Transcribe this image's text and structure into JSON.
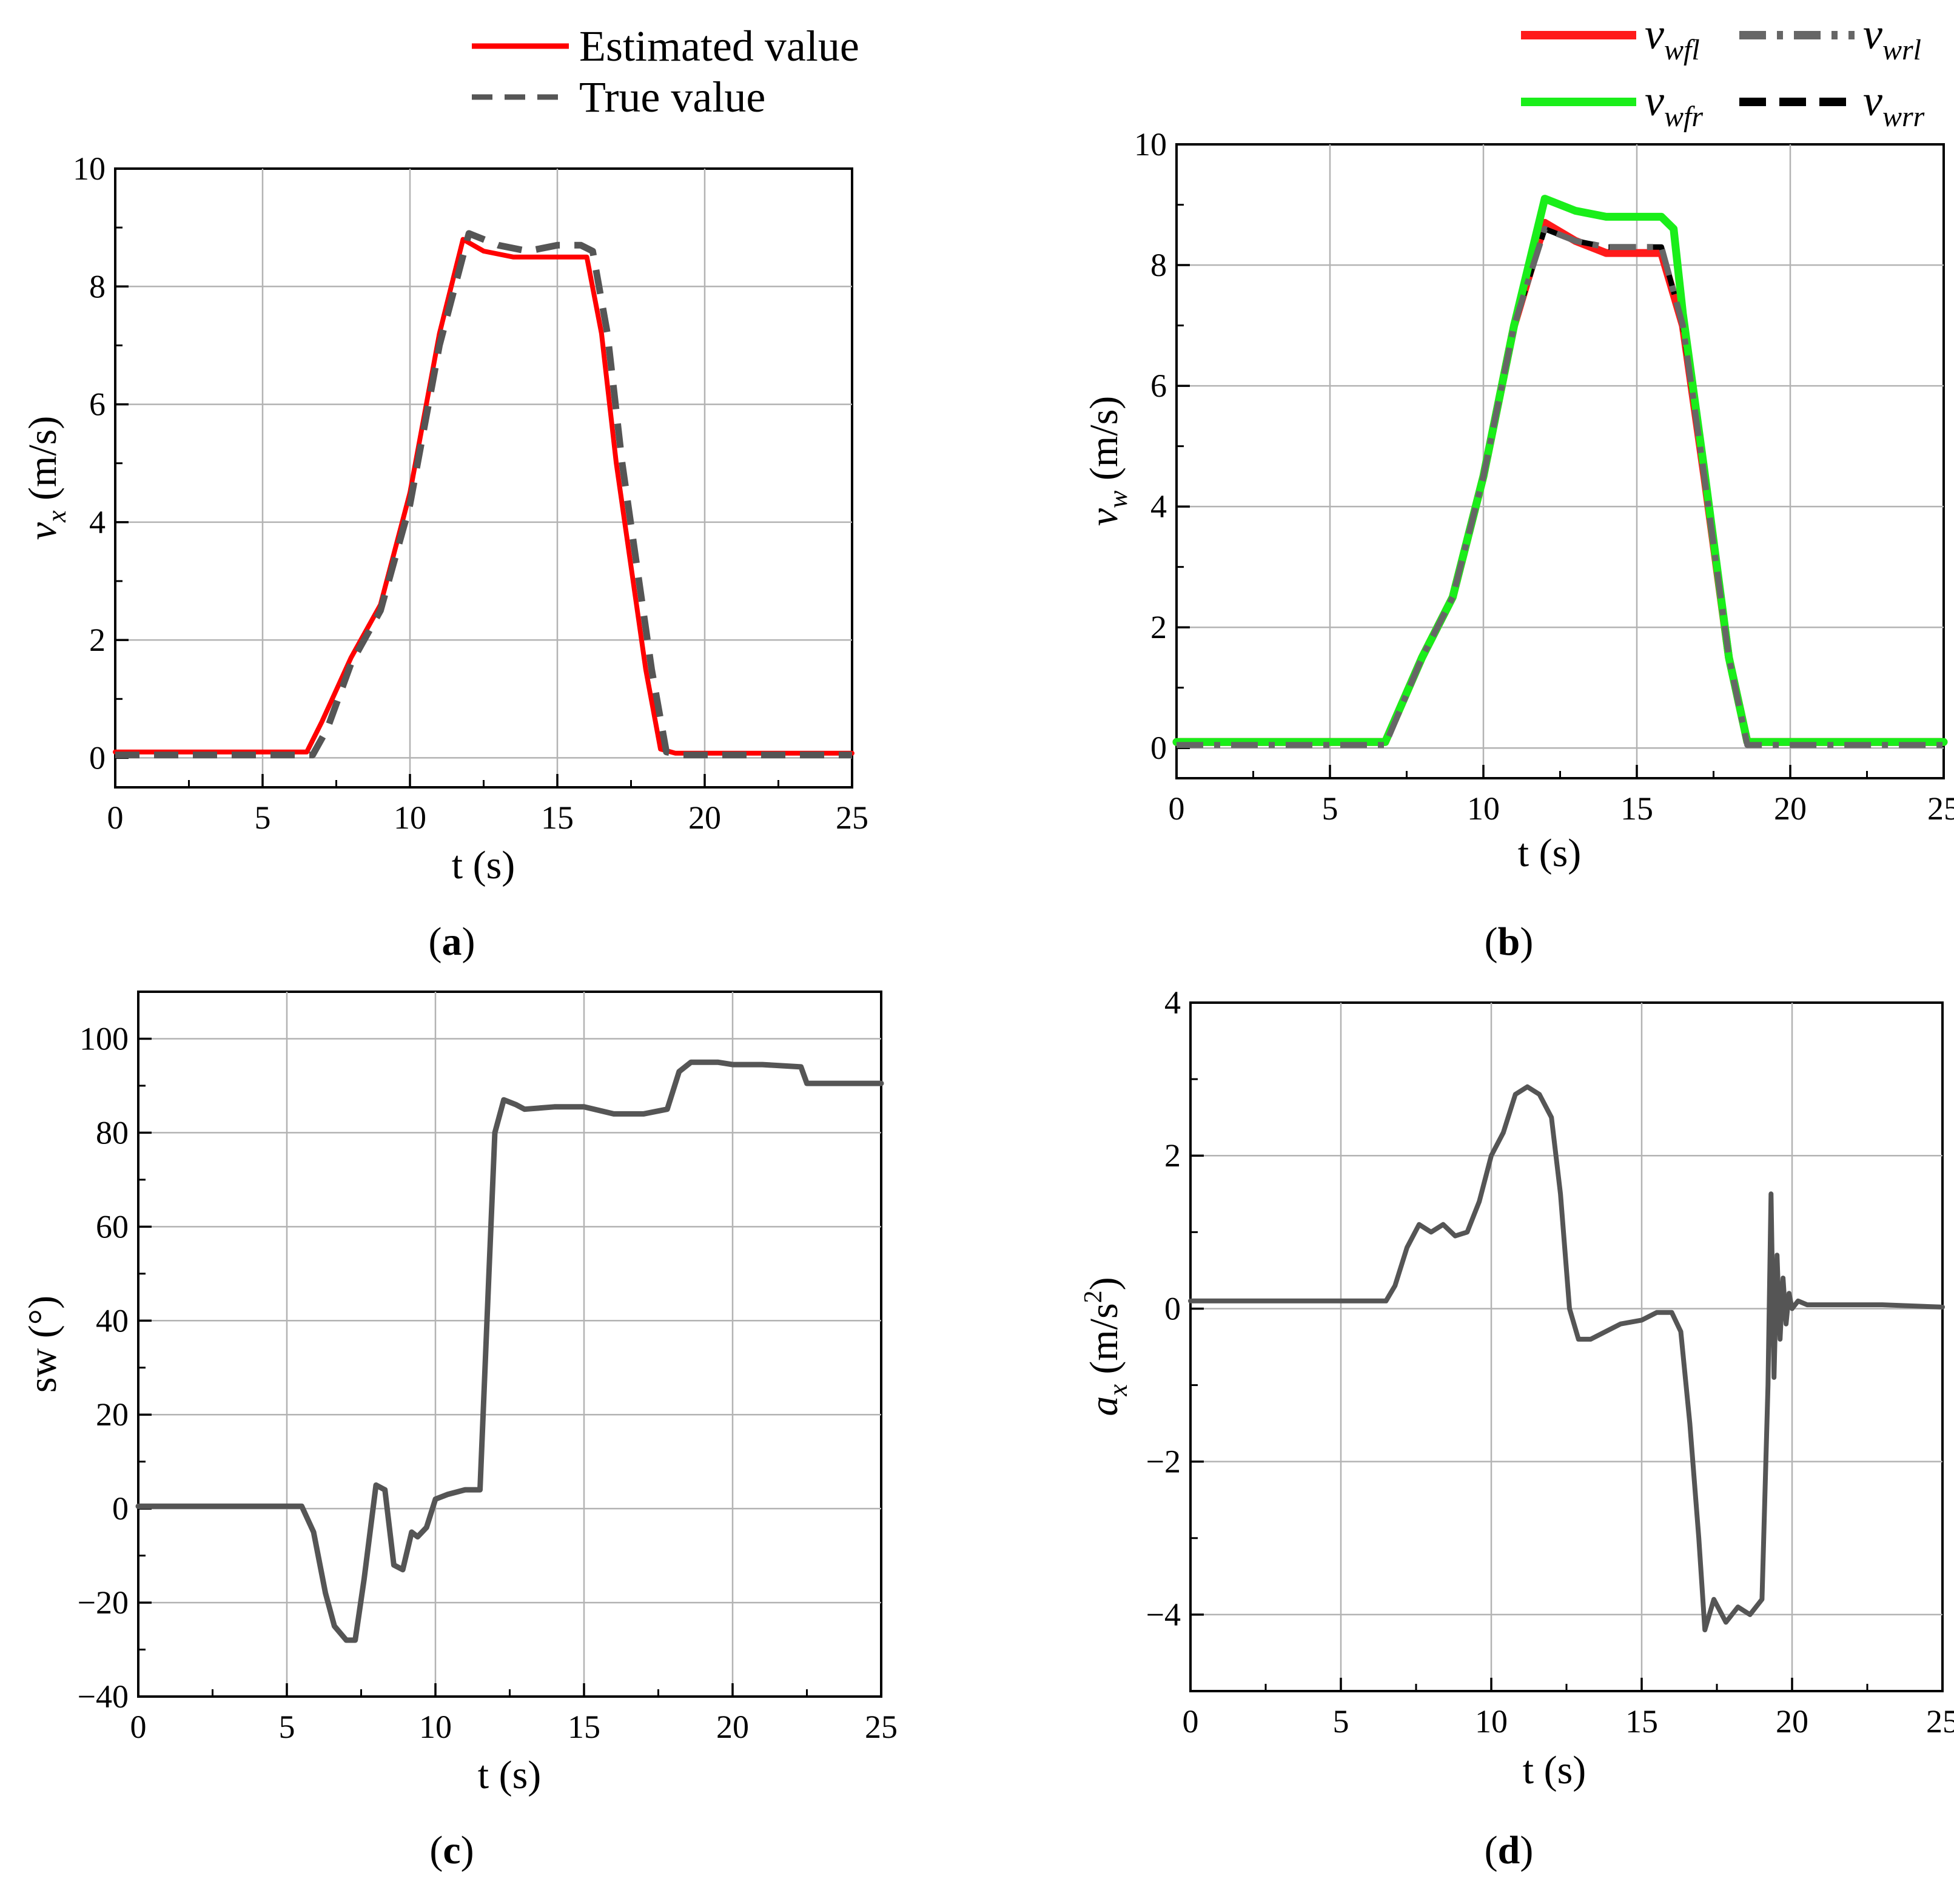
{
  "chart_data": [
    {
      "id": "a",
      "type": "line",
      "caption": "a",
      "xlabel": "t (s)",
      "ylabel": "v",
      "ylabel_sub": "x",
      "ylabel_unit": " (m/s)",
      "xlim": [
        0,
        25
      ],
      "ylim": [
        -0.5,
        10
      ],
      "xticks": [
        0,
        5,
        10,
        15,
        20,
        25
      ],
      "yticks": [
        0,
        2,
        4,
        6,
        8,
        10
      ],
      "grid": true,
      "legend": {
        "placement": "top-center, above plot",
        "entries": [
          "Estimated value",
          "True value"
        ]
      },
      "series": [
        {
          "name": "Estimated value",
          "style": "solid",
          "color": "#ff0000",
          "x": [
            0,
            6.5,
            7,
            8,
            9,
            10,
            11,
            11.8,
            12.5,
            13.5,
            14.5,
            15.5,
            16,
            16.5,
            17,
            18,
            18.5,
            19,
            25
          ],
          "y": [
            0.1,
            0.1,
            0.6,
            1.7,
            2.6,
            4.5,
            7.2,
            8.8,
            8.6,
            8.5,
            8.5,
            8.5,
            8.5,
            7.2,
            5.0,
            1.5,
            0.15,
            0.08,
            0.08
          ]
        },
        {
          "name": "True value",
          "style": "dashed",
          "color": "#555555",
          "x": [
            0,
            6.7,
            7.2,
            8,
            9,
            10,
            11,
            12,
            13,
            14,
            15,
            15.8,
            16.2,
            16.7,
            17.2,
            18.2,
            18.7,
            19.2,
            25
          ],
          "y": [
            0.05,
            0.05,
            0.5,
            1.6,
            2.5,
            4.3,
            7.0,
            8.9,
            8.7,
            8.6,
            8.7,
            8.7,
            8.6,
            7.2,
            5.0,
            1.5,
            0.1,
            0.05,
            0.05
          ]
        }
      ]
    },
    {
      "id": "b",
      "type": "line",
      "caption": "b",
      "xlabel": "t (s)",
      "ylabel": "v",
      "ylabel_sub": "w",
      "ylabel_unit": " (m/s)",
      "xlim": [
        0,
        25
      ],
      "ylim": [
        -0.5,
        10
      ],
      "xticks": [
        0,
        5,
        10,
        15,
        20,
        25
      ],
      "yticks": [
        0,
        2,
        4,
        6,
        8,
        10
      ],
      "grid": true,
      "legend": {
        "placement": "top-right, above plot",
        "entries": [
          "v_wfl",
          "v_wrl",
          "v_wfr",
          "v_wrr"
        ]
      },
      "series": [
        {
          "name": "v",
          "sub": "wfl",
          "style": "solid",
          "color": "#ff1a1a",
          "x": [
            0,
            6.8,
            8,
            9,
            10,
            11,
            12,
            13,
            14,
            15,
            15.8,
            16.5,
            17.2,
            18,
            18.6,
            25
          ],
          "y": [
            0.1,
            0.1,
            1.5,
            2.5,
            4.5,
            7.0,
            8.7,
            8.4,
            8.2,
            8.2,
            8.2,
            7.0,
            4.5,
            1.5,
            0.1,
            0.1
          ]
        },
        {
          "name": "v",
          "sub": "wrr",
          "style": "dashed",
          "color": "#000000",
          "x": [
            0,
            6.8,
            8,
            9,
            10,
            11,
            12,
            13,
            14,
            15,
            15.8,
            16.5,
            17.2,
            18,
            18.6,
            25
          ],
          "y": [
            0.1,
            0.1,
            1.5,
            2.5,
            4.5,
            7.0,
            8.6,
            8.4,
            8.3,
            8.3,
            8.3,
            7.0,
            4.5,
            1.5,
            0.1,
            0.1
          ]
        },
        {
          "name": "v",
          "sub": "wfr",
          "style": "solid",
          "color": "#1aee1a",
          "x": [
            0,
            6.8,
            8,
            9,
            10,
            11,
            12,
            13,
            14,
            15,
            15.8,
            16.2,
            16.5,
            17.2,
            18,
            18.6,
            25
          ],
          "y": [
            0.1,
            0.1,
            1.5,
            2.5,
            4.5,
            7.0,
            9.1,
            8.9,
            8.8,
            8.8,
            8.8,
            8.6,
            7.2,
            4.6,
            1.5,
            0.1,
            0.1
          ]
        },
        {
          "name": "v",
          "sub": "wrl",
          "style": "dashdot",
          "color": "#666666",
          "x": [
            0,
            6.8,
            8,
            9,
            10,
            11,
            12,
            13,
            14,
            15,
            15.8,
            16.5,
            17.2,
            18,
            18.6,
            25
          ],
          "y": [
            0.05,
            0.05,
            1.5,
            2.5,
            4.5,
            7.0,
            8.6,
            8.4,
            8.3,
            8.3,
            8.3,
            7.0,
            4.5,
            1.5,
            0.05,
            0.05
          ]
        }
      ]
    },
    {
      "id": "c",
      "type": "line",
      "caption": "c",
      "xlabel": "t (s)",
      "ylabel": "sw (°)",
      "xlim": [
        0,
        25
      ],
      "ylim": [
        -40,
        110
      ],
      "xticks": [
        0,
        5,
        10,
        15,
        20,
        25
      ],
      "yticks": [
        -40,
        -20,
        0,
        20,
        40,
        60,
        80,
        100
      ],
      "grid": true,
      "series": [
        {
          "name": "sw",
          "style": "solid",
          "color": "#555555",
          "x": [
            0,
            5.5,
            5.9,
            6.3,
            6.6,
            7.0,
            7.3,
            7.6,
            8.0,
            8.3,
            8.6,
            8.9,
            9.2,
            9.4,
            9.7,
            10.0,
            10.4,
            11.0,
            11.5,
            11.8,
            12.0,
            12.3,
            12.7,
            13,
            14,
            15,
            16,
            17,
            17.8,
            18.2,
            18.6,
            19.5,
            20,
            21,
            22.3,
            22.5,
            25
          ],
          "y": [
            0.5,
            0.5,
            -5,
            -18,
            -25,
            -28,
            -28,
            -15,
            5,
            4,
            -12,
            -13,
            -5,
            -6,
            -4,
            2,
            3,
            4,
            4,
            50,
            80,
            87,
            86,
            85,
            85.5,
            85.5,
            84,
            84,
            85,
            93,
            95,
            95,
            94.5,
            94.5,
            94,
            90.5,
            90.5
          ]
        }
      ]
    },
    {
      "id": "d",
      "type": "line",
      "caption": "d",
      "xlabel": "t (s)",
      "ylabel": "a",
      "ylabel_sub": "x",
      "ylabel_unit": " (m/s",
      "ylabel_sup": "2",
      "ylabel_close": ")",
      "xlim": [
        0,
        25
      ],
      "ylim": [
        -5,
        4
      ],
      "xticks": [
        0,
        5,
        10,
        15,
        20,
        25
      ],
      "yticks": [
        -4,
        -2,
        0,
        2,
        4
      ],
      "grid": true,
      "series": [
        {
          "name": "a_x",
          "style": "solid",
          "color": "#555555",
          "x": [
            0,
            6.5,
            6.8,
            7.2,
            7.6,
            8.0,
            8.4,
            8.8,
            9.2,
            9.6,
            10.0,
            10.4,
            10.8,
            11.2,
            11.6,
            12.0,
            12.3,
            12.6,
            12.9,
            13.3,
            13.8,
            14.3,
            15,
            15.5,
            16.0,
            16.3,
            16.6,
            16.9,
            17.1,
            17.4,
            17.8,
            18.2,
            18.6,
            19.0,
            19.2,
            19.3,
            19.4,
            19.5,
            19.6,
            19.7,
            19.8,
            19.9,
            20.0,
            20.2,
            20.5,
            21,
            22,
            23,
            25
          ],
          "y": [
            0.1,
            0.1,
            0.3,
            0.8,
            1.1,
            1.0,
            1.1,
            0.95,
            1.0,
            1.4,
            2.0,
            2.3,
            2.8,
            2.9,
            2.8,
            2.5,
            1.5,
            0.0,
            -0.4,
            -0.4,
            -0.3,
            -0.2,
            -0.15,
            -0.05,
            -0.05,
            -0.3,
            -1.5,
            -3.0,
            -4.2,
            -3.8,
            -4.1,
            -3.9,
            -4.0,
            -3.8,
            -1.0,
            1.5,
            -0.9,
            0.7,
            -0.4,
            0.4,
            -0.2,
            0.2,
            0.0,
            0.1,
            0.05,
            0.05,
            0.05,
            0.05,
            0.02
          ]
        }
      ]
    }
  ]
}
